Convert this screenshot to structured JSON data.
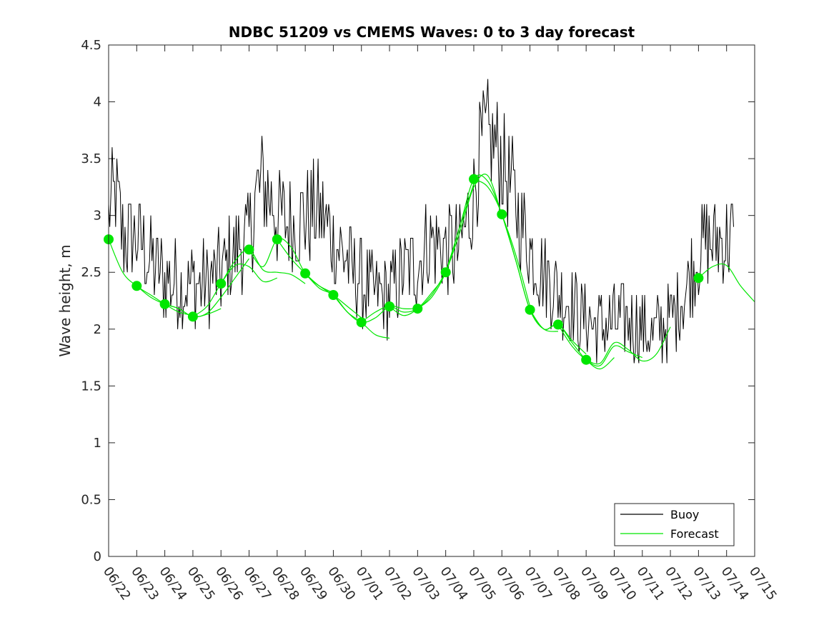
{
  "chart_data": {
    "type": "line",
    "title": "NDBC 51209 vs CMEMS Waves: 0 to 3 day forecast",
    "xlabel": "",
    "ylabel": "Wave height, m",
    "xlim": [
      "06/22",
      "07/15"
    ],
    "ylim": [
      0,
      4.5
    ],
    "y_ticks": [
      0,
      0.5,
      1,
      1.5,
      2,
      2.5,
      3,
      3.5,
      4,
      4.5
    ],
    "x_ticks": [
      "06/22",
      "06/23",
      "06/24",
      "06/25",
      "06/26",
      "06/27",
      "06/28",
      "06/29",
      "06/30",
      "07/01",
      "07/02",
      "07/03",
      "07/04",
      "07/05",
      "07/06",
      "07/07",
      "07/08",
      "07/09",
      "07/10",
      "07/11",
      "07/12",
      "07/13",
      "07/14",
      "07/15"
    ],
    "grid": false,
    "legend": {
      "placement": "bottom-right",
      "entries": [
        {
          "label": "Buoy",
          "color": "#000000"
        },
        {
          "label": "Forecast",
          "color": "#00e600"
        }
      ]
    },
    "colors": {
      "buoy": "#000000",
      "forecast": "#00e600"
    },
    "buoy_anchor_x": [
      "06/22",
      "06/22 06:00",
      "06/22 12:00",
      "06/23",
      "06/23 12:00",
      "06/24",
      "06/24 12:00",
      "06/25",
      "06/25 12:00",
      "06/26",
      "06/26 12:00",
      "06/27",
      "06/27 06:00",
      "06/27 12:00",
      "06/28",
      "06/28 12:00",
      "06/29",
      "06/29 12:00",
      "06/30",
      "06/30 12:00",
      "07/01",
      "07/01 12:00",
      "07/02",
      "07/02 12:00",
      "07/03",
      "07/03 12:00",
      "07/04",
      "07/04 12:00",
      "07/05",
      "07/05 06:00",
      "07/05 12:00",
      "07/06",
      "07/06 12:00",
      "07/07",
      "07/07 12:00",
      "07/08",
      "07/08 12:00",
      "07/09",
      "07/09 12:00",
      "07/10",
      "07/10 12:00",
      "07/11",
      "07/11 12:00",
      "07/12",
      "07/12 12:00",
      "07/13",
      "07/13 12:00",
      "07/14",
      "07/14 06:00"
    ],
    "buoy_anchor_y": [
      3.0,
      3.2,
      2.8,
      2.8,
      2.6,
      2.45,
      2.4,
      2.4,
      2.4,
      2.5,
      2.7,
      2.8,
      3.2,
      3.3,
      3.0,
      2.9,
      3.0,
      3.05,
      2.8,
      2.6,
      2.4,
      2.3,
      2.3,
      2.5,
      2.6,
      2.8,
      2.7,
      2.7,
      3.2,
      3.6,
      3.7,
      3.5,
      3.1,
      2.7,
      2.5,
      2.35,
      2.2,
      2.1,
      2.0,
      2.05,
      2.1,
      2.0,
      1.95,
      2.1,
      2.3,
      2.7,
      2.75,
      2.8,
      2.8
    ],
    "forecast_points_x": [
      "06/22",
      "06/23",
      "06/24",
      "06/25",
      "06/26",
      "06/27",
      "06/28",
      "06/29",
      "06/30",
      "07/01",
      "07/02",
      "07/03",
      "07/04",
      "07/05",
      "07/06",
      "07/07",
      "07/08",
      "07/09",
      "07/13"
    ],
    "forecast_points_y": [
      2.79,
      2.38,
      2.22,
      2.11,
      2.4,
      2.7,
      2.79,
      2.49,
      2.3,
      2.06,
      2.2,
      2.18,
      2.5,
      3.32,
      3.01,
      2.17,
      2.04,
      1.73,
      2.45
    ],
    "forecast_runs": [
      {
        "x": [
          "06/22",
          "06/22 12:00",
          "06/23",
          "06/23 12:00",
          "06/24",
          "06/24 12:00",
          "06/25"
        ],
        "y": [
          2.79,
          2.5,
          2.38,
          2.3,
          2.22,
          2.15,
          2.12
        ]
      },
      {
        "x": [
          "06/23",
          "06/23 12:00",
          "06/24",
          "06/24 12:00",
          "06/25",
          "06/25 12:00",
          "06/26"
        ],
        "y": [
          2.38,
          2.28,
          2.22,
          2.18,
          2.11,
          2.13,
          2.18
        ]
      },
      {
        "x": [
          "06/24",
          "06/24 12:00",
          "06/25",
          "06/25 12:00",
          "06/26",
          "06/26 12:00",
          "06/27"
        ],
        "y": [
          2.22,
          2.18,
          2.11,
          2.14,
          2.28,
          2.45,
          2.62
        ]
      },
      {
        "x": [
          "06/25",
          "06/25 12:00",
          "06/26",
          "06/26 12:00",
          "06/27",
          "06/27 12:00",
          "06/28"
        ],
        "y": [
          2.11,
          2.2,
          2.4,
          2.56,
          2.55,
          2.42,
          2.45
        ]
      },
      {
        "x": [
          "06/26",
          "06/26 12:00",
          "06/27",
          "06/27 12:00",
          "06/28",
          "06/28 12:00",
          "06/29"
        ],
        "y": [
          2.4,
          2.6,
          2.7,
          2.52,
          2.5,
          2.48,
          2.4
        ]
      },
      {
        "x": [
          "06/27",
          "06/27 12:00",
          "06/28",
          "06/28 12:00",
          "06/29",
          "06/29 12:00",
          "06/30"
        ],
        "y": [
          2.7,
          2.55,
          2.79,
          2.72,
          2.49,
          2.38,
          2.32
        ]
      },
      {
        "x": [
          "06/28",
          "06/28 12:00",
          "06/29",
          "06/29 12:00",
          "06/30",
          "06/30 12:00",
          "07/01"
        ],
        "y": [
          2.79,
          2.62,
          2.49,
          2.38,
          2.3,
          2.2,
          2.1
        ]
      },
      {
        "x": [
          "06/29",
          "06/29 12:00",
          "06/30",
          "06/30 12:00",
          "07/01",
          "07/01 12:00",
          "07/02"
        ],
        "y": [
          2.49,
          2.36,
          2.3,
          2.15,
          2.06,
          1.95,
          1.92
        ]
      },
      {
        "x": [
          "06/30",
          "06/30 12:00",
          "07/01",
          "07/01 12:00",
          "07/02",
          "07/02 12:00",
          "07/03"
        ],
        "y": [
          2.3,
          2.15,
          2.06,
          2.1,
          2.2,
          2.18,
          2.18
        ]
      },
      {
        "x": [
          "07/01",
          "07/01 12:00",
          "07/02",
          "07/02 12:00",
          "07/03",
          "07/03 12:00",
          "07/04"
        ],
        "y": [
          2.06,
          2.15,
          2.2,
          2.15,
          2.18,
          2.3,
          2.5
        ]
      },
      {
        "x": [
          "07/02",
          "07/02 12:00",
          "07/03",
          "07/03 12:00",
          "07/04",
          "07/04 12:00",
          "07/05"
        ],
        "y": [
          2.2,
          2.12,
          2.18,
          2.32,
          2.5,
          2.9,
          3.28
        ]
      },
      {
        "x": [
          "07/03",
          "07/03 12:00",
          "07/04",
          "07/04 12:00",
          "07/05",
          "07/05 12:00",
          "07/06"
        ],
        "y": [
          2.18,
          2.28,
          2.5,
          2.85,
          3.25,
          3.35,
          3.0
        ]
      },
      {
        "x": [
          "07/04",
          "07/04 12:00",
          "07/05",
          "07/05 12:00",
          "07/06",
          "07/06 12:00",
          "07/07"
        ],
        "y": [
          2.5,
          2.9,
          3.32,
          3.3,
          3.01,
          2.65,
          2.2
        ]
      },
      {
        "x": [
          "07/05",
          "07/05 12:00",
          "07/06",
          "07/06 12:00",
          "07/07",
          "07/07 12:00",
          "07/08"
        ],
        "y": [
          3.32,
          3.25,
          3.01,
          2.6,
          2.17,
          2.0,
          1.98
        ]
      },
      {
        "x": [
          "07/06",
          "07/06 12:00",
          "07/07",
          "07/07 12:00",
          "07/08",
          "07/08 12:00",
          "07/09"
        ],
        "y": [
          3.01,
          2.6,
          2.17,
          2.0,
          2.04,
          1.9,
          1.78
        ]
      },
      {
        "x": [
          "07/07",
          "07/07 12:00",
          "07/08",
          "07/08 12:00",
          "07/09",
          "07/09 12:00",
          "07/10"
        ],
        "y": [
          2.17,
          2.0,
          2.04,
          1.88,
          1.73,
          1.65,
          1.75
        ]
      },
      {
        "x": [
          "07/08",
          "07/08 12:00",
          "07/09",
          "07/09 12:00",
          "07/10",
          "07/10 12:00",
          "07/11"
        ],
        "y": [
          2.04,
          1.85,
          1.73,
          1.68,
          1.85,
          1.8,
          1.75
        ]
      },
      {
        "x": [
          "07/09",
          "07/09 12:00",
          "07/10",
          "07/10 12:00",
          "07/11",
          "07/11 12:00",
          "07/12"
        ],
        "y": [
          1.73,
          1.7,
          1.88,
          1.82,
          1.72,
          1.78,
          2.02
        ]
      },
      {
        "x": [
          "07/13",
          "07/13 12:00",
          "07/14",
          "07/14 12:00",
          "07/15"
        ],
        "y": [
          2.45,
          2.55,
          2.56,
          2.38,
          2.24
        ]
      }
    ]
  }
}
